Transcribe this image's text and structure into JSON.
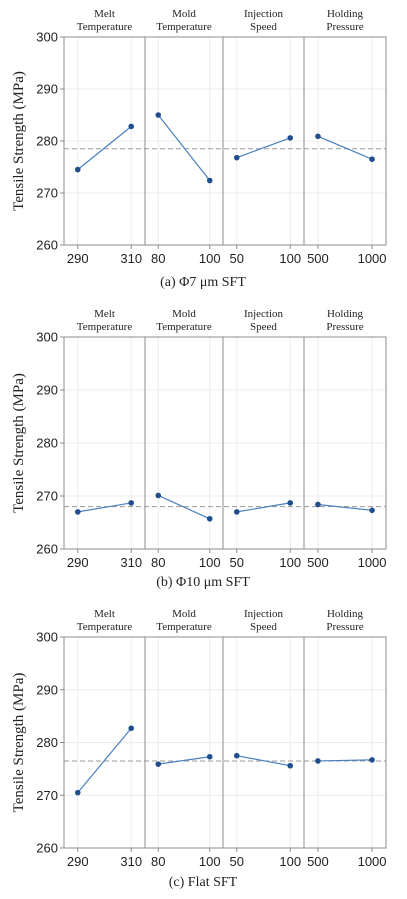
{
  "chart_data": [
    {
      "type": "line",
      "caption": "(a) Φ7 μm SFT",
      "ylabel": "Tensile Strength (MPa)",
      "ylim": [
        260,
        300
      ],
      "yticks": [
        260,
        270,
        280,
        290,
        300
      ],
      "mean_reference": 278.5,
      "grid": true,
      "series": [
        {
          "name": "Melt Temperature",
          "name_lines": [
            "Melt",
            "Temperature"
          ],
          "x": [
            "290",
            "310"
          ],
          "values": [
            274.5,
            282.8
          ]
        },
        {
          "name": "Mold Temperature",
          "name_lines": [
            "Mold",
            "Temperature"
          ],
          "x": [
            "80",
            "100"
          ],
          "values": [
            285.0,
            272.4
          ]
        },
        {
          "name": "Injection Speed",
          "name_lines": [
            "Injection",
            "Speed"
          ],
          "x": [
            "50",
            "100"
          ],
          "values": [
            276.8,
            280.6
          ]
        },
        {
          "name": "Holding Pressure",
          "name_lines": [
            "Holding",
            "Pressure"
          ],
          "x": [
            "500",
            "1000"
          ],
          "values": [
            280.9,
            276.5
          ]
        }
      ]
    },
    {
      "type": "line",
      "caption": "(b) Φ10 μm SFT",
      "ylabel": "Tensile Strength (MPa)",
      "ylim": [
        260,
        300
      ],
      "yticks": [
        260,
        270,
        280,
        290,
        300
      ],
      "mean_reference": 268.0,
      "grid": true,
      "series": [
        {
          "name": "Melt Temperature",
          "name_lines": [
            "Melt",
            "Temperature"
          ],
          "x": [
            "290",
            "310"
          ],
          "values": [
            267.0,
            268.7
          ]
        },
        {
          "name": "Mold Temperature",
          "name_lines": [
            "Mold",
            "Temperature"
          ],
          "x": [
            "80",
            "100"
          ],
          "values": [
            270.1,
            265.7
          ]
        },
        {
          "name": "Injection Speed",
          "name_lines": [
            "Injection",
            "Speed"
          ],
          "x": [
            "50",
            "100"
          ],
          "values": [
            267.0,
            268.7
          ]
        },
        {
          "name": "Holding Pressure",
          "name_lines": [
            "Holding",
            "Pressure"
          ],
          "x": [
            "500",
            "1000"
          ],
          "values": [
            268.4,
            267.3
          ]
        }
      ]
    },
    {
      "type": "line",
      "caption": "(c) Flat SFT",
      "ylabel": "Tensile Strength (MPa)",
      "ylim": [
        260,
        300
      ],
      "yticks": [
        260,
        270,
        280,
        290,
        300
      ],
      "mean_reference": 276.5,
      "grid": true,
      "series": [
        {
          "name": "Melt Temperature",
          "name_lines": [
            "Melt",
            "Temperature"
          ],
          "x": [
            "290",
            "310"
          ],
          "values": [
            270.5,
            282.7
          ]
        },
        {
          "name": "Mold Temperature",
          "name_lines": [
            "Mold",
            "Temperature"
          ],
          "x": [
            "80",
            "100"
          ],
          "values": [
            275.9,
            277.3
          ]
        },
        {
          "name": "Injection Speed",
          "name_lines": [
            "Injection",
            "Speed"
          ],
          "x": [
            "50",
            "100"
          ],
          "values": [
            277.5,
            275.6
          ]
        },
        {
          "name": "Holding Pressure",
          "name_lines": [
            "Holding",
            "Pressure"
          ],
          "x": [
            "500",
            "1000"
          ],
          "values": [
            276.5,
            276.7
          ]
        }
      ]
    }
  ],
  "colors": {
    "series": "#4a7fc1",
    "marker": "#1f4e8c",
    "reference": "#9a9a9a",
    "grid": "#ececec",
    "frame": "#8c8c8c"
  }
}
